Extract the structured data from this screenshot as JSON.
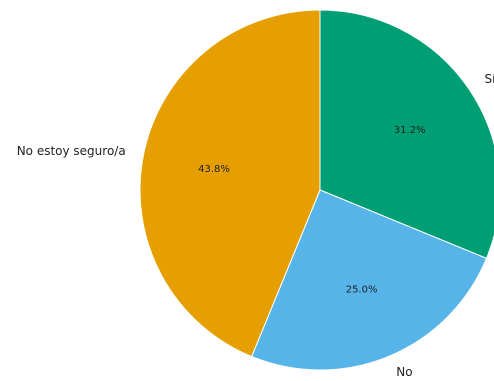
{
  "chart_data": {
    "type": "pie",
    "title": "",
    "start_angle_deg": 90,
    "direction": "clockwise",
    "slices": [
      {
        "label": "Sí",
        "value": 31.2,
        "value_label": "31.2%",
        "color": "#009E73"
      },
      {
        "label": "No",
        "value": 25.0,
        "value_label": "25.0%",
        "color": "#56B4E9"
      },
      {
        "label": "No estoy seguro/a",
        "value": 43.8,
        "value_label": "43.8%",
        "color": "#E69F00"
      }
    ]
  }
}
